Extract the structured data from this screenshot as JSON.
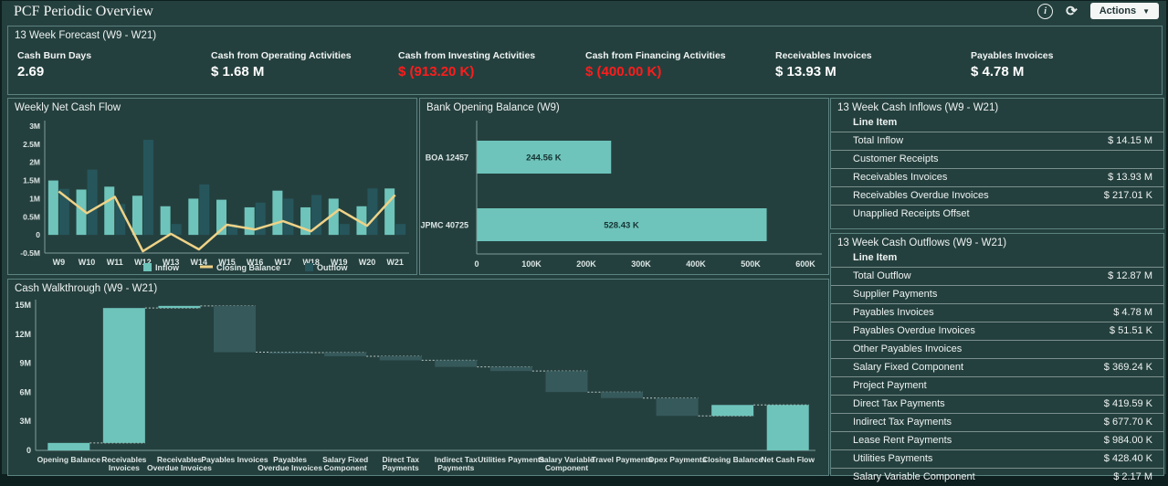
{
  "header": {
    "title": "PCF Periodic Overview",
    "actions_label": "Actions",
    "icons": [
      "info-icon",
      "refresh-icon",
      "dropdown-arrow-icon"
    ]
  },
  "colors": {
    "background": "#24403E",
    "panel_border": "#5C8381",
    "accent_teal": "#6EC4BB",
    "dark_teal_bar": "#26565C",
    "waterfall_down": "#36595B",
    "line_yellow": "#EFD287",
    "negative_red": "#FF1C1C",
    "axis": "#7E9C9A",
    "tick_text": "#DCE6E5"
  },
  "kpi_panel": {
    "title": "13 Week Forecast (W9 - W21)",
    "kpis": [
      {
        "label": "Cash Burn Days",
        "value": "2.69",
        "negative": false
      },
      {
        "label": "Cash from Operating Activities",
        "value": "$ 1.68 M",
        "negative": false
      },
      {
        "label": "Cash from Investing Activities",
        "value": "$ (913.20 K)",
        "negative": true
      },
      {
        "label": "Cash from Financing Activities",
        "value": "$ (400.00 K)",
        "negative": true
      },
      {
        "label": "Receivables Invoices",
        "value": "$ 13.93 M",
        "negative": false
      },
      {
        "label": "Payables Invoices",
        "value": "$ 4.78 M",
        "negative": false
      }
    ]
  },
  "inflows_table": {
    "title": "13 Week Cash Inflows (W9 - W21)",
    "header": "Line Item",
    "rows": [
      {
        "label": "Total Inflow",
        "value": "$ 14.15 M"
      },
      {
        "label": "Customer Receipts",
        "value": ""
      },
      {
        "label": "Receivables Invoices",
        "value": "$ 13.93 M"
      },
      {
        "label": "Receivables Overdue Invoices",
        "value": "$ 217.01 K"
      },
      {
        "label": "Unapplied Receipts Offset",
        "value": ""
      }
    ]
  },
  "outflows_table": {
    "title": "13 Week Cash Outflows (W9 - W21)",
    "header": "Line Item",
    "rows": [
      {
        "label": "Total Outflow",
        "value": "$ 12.87 M"
      },
      {
        "label": "Supplier Payments",
        "value": ""
      },
      {
        "label": "Payables Invoices",
        "value": "$ 4.78 M"
      },
      {
        "label": "Payables Overdue Invoices",
        "value": "$ 51.51 K"
      },
      {
        "label": "Other Payables Invoices",
        "value": ""
      },
      {
        "label": "Salary Fixed Component",
        "value": "$ 369.24 K"
      },
      {
        "label": "Project Payment",
        "value": ""
      },
      {
        "label": "Direct Tax Payments",
        "value": "$ 419.59 K"
      },
      {
        "label": "Indirect Tax Payments",
        "value": "$ 677.70 K"
      },
      {
        "label": "Lease Rent Payments",
        "value": "$ 984.00 K"
      },
      {
        "label": "Utilities Payments",
        "value": "$ 428.40 K"
      },
      {
        "label": "Salary Variable Component",
        "value": "$ 2.17 M"
      }
    ]
  },
  "chart_data": [
    {
      "type": "bar",
      "title": "Weekly Net Cash Flow",
      "unit": "millions USD",
      "categories": [
        "W9",
        "W10",
        "W11",
        "W12",
        "W13",
        "W14",
        "W15",
        "W16",
        "W17",
        "W18",
        "W19",
        "W20",
        "W21"
      ],
      "series": [
        {
          "name": "Inflow",
          "kind": "bar",
          "color": "#6EC4BB",
          "values": [
            1.5,
            1.25,
            1.33,
            1.08,
            0.79,
            1.0,
            0.97,
            0.76,
            1.22,
            0.76,
            1.0,
            0.79,
            1.28
          ]
        },
        {
          "name": "Outflow",
          "kind": "bar",
          "color": "#26565C",
          "values": [
            1.27,
            1.8,
            0.85,
            2.62,
            0.3,
            1.39,
            0.3,
            0.89,
            1.0,
            1.1,
            0.3,
            1.28,
            0.3
          ]
        },
        {
          "name": "Closing Balance",
          "kind": "line",
          "color": "#EFD287",
          "values": [
            1.2,
            0.6,
            1.05,
            -0.45,
            0.03,
            -0.4,
            0.28,
            0.15,
            0.38,
            0.1,
            0.7,
            0.25,
            1.1
          ]
        }
      ],
      "ylim": [
        -0.5,
        3
      ],
      "yticks": [
        "3M",
        "2.5M",
        "2M",
        "1.5M",
        "1M",
        "0.5M",
        "0",
        "-0.5M"
      ],
      "ytick_values": [
        3,
        2.5,
        2,
        1.5,
        1,
        0.5,
        0,
        -0.5
      ],
      "legend": [
        "Inflow",
        "Closing Balance",
        "Outflow"
      ],
      "legend_position": "bottom"
    },
    {
      "type": "bar-horizontal",
      "title": "Bank Opening Balance (W9)",
      "unit": "thousands USD",
      "categories": [
        "BOA 12457",
        "JPMC 40725"
      ],
      "values": [
        244.56,
        528.43
      ],
      "value_labels": [
        "244.56 K",
        "528.43 K"
      ],
      "xlim": [
        0,
        600
      ],
      "xticks": [
        "0",
        "100K",
        "200K",
        "300K",
        "400K",
        "500K",
        "600K"
      ],
      "xtick_values": [
        0,
        100,
        200,
        300,
        400,
        500,
        600
      ],
      "bar_color": "#6EC4BB"
    },
    {
      "type": "waterfall",
      "title": "Cash Walkthrough (W9 - W21)",
      "unit": "millions USD",
      "ylim": [
        0,
        15
      ],
      "yticks": [
        "15M",
        "12M",
        "9M",
        "6M",
        "3M",
        "0"
      ],
      "ytick_values": [
        15,
        12,
        9,
        6,
        3,
        0
      ],
      "steps": [
        {
          "label": [
            "Opening Balance"
          ],
          "from": 0,
          "to": 0.77,
          "direction": "increase"
        },
        {
          "label": [
            "Receivables",
            "Invoices"
          ],
          "from": 0.77,
          "to": 14.7,
          "direction": "increase"
        },
        {
          "label": [
            "Receivables",
            "Overdue Invoices"
          ],
          "from": 14.7,
          "to": 14.92,
          "direction": "increase"
        },
        {
          "label": [
            "Payables Invoices"
          ],
          "from": 14.92,
          "to": 10.14,
          "direction": "decrease"
        },
        {
          "label": [
            "Payables",
            "Overdue Invoices"
          ],
          "from": 10.14,
          "to": 10.09,
          "direction": "decrease"
        },
        {
          "label": [
            "Salary Fixed",
            "Component"
          ],
          "from": 10.09,
          "to": 9.72,
          "direction": "decrease"
        },
        {
          "label": [
            "Direct Tax",
            "Payments"
          ],
          "from": 9.72,
          "to": 9.3,
          "direction": "decrease"
        },
        {
          "label": [
            "Indirect Tax",
            "Payments"
          ],
          "from": 9.3,
          "to": 8.62,
          "direction": "decrease"
        },
        {
          "label": [
            "Utilities Payments"
          ],
          "from": 8.62,
          "to": 8.19,
          "direction": "decrease"
        },
        {
          "label": [
            "Salary Variable",
            "Component"
          ],
          "from": 8.19,
          "to": 6.02,
          "direction": "decrease"
        },
        {
          "label": [
            "Travel Payments"
          ],
          "from": 6.02,
          "to": 5.4,
          "direction": "decrease"
        },
        {
          "label": [
            "Opex Payments"
          ],
          "from": 5.4,
          "to": 3.56,
          "direction": "decrease"
        },
        {
          "label": [
            "Closing Balance"
          ],
          "from": 3.56,
          "to": 4.69,
          "direction": "total"
        },
        {
          "label": [
            "Net Cash Flow"
          ],
          "from": 0,
          "to": 4.69,
          "direction": "total"
        }
      ]
    }
  ]
}
